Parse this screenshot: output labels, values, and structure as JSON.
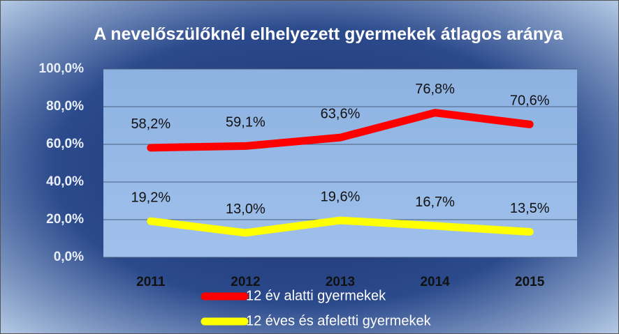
{
  "chart_data": {
    "type": "line",
    "title": "A nevelőszülőknél elhelyezett gyermekek átlagos aránya",
    "categories": [
      "2011",
      "2012",
      "2013",
      "2014",
      "2015"
    ],
    "series": [
      {
        "name": "12 év alatti gyermekek",
        "color": "#ff0000",
        "values": [
          58.2,
          59.1,
          63.6,
          76.8,
          70.6
        ],
        "value_labels": [
          "58,2%",
          "59,1%",
          "63,6%",
          "76,8%",
          "70,6%"
        ]
      },
      {
        "name": "12 éves és afeletti gyermekek",
        "color": "#ffff00",
        "values": [
          19.2,
          13.0,
          19.6,
          16.7,
          13.5
        ],
        "value_labels": [
          "19,2%",
          "13,0%",
          "19,6%",
          "16,7%",
          "13,5%"
        ]
      }
    ],
    "ylim": [
      0,
      100
    ],
    "yticks": [
      {
        "value": 0,
        "label": "0,0%"
      },
      {
        "value": 20,
        "label": "20,0%"
      },
      {
        "value": 40,
        "label": "40,0%"
      },
      {
        "value": 60,
        "label": "60,0%"
      },
      {
        "value": 80,
        "label": "80,0%"
      },
      {
        "value": 100,
        "label": "100,0%"
      }
    ],
    "grid": true,
    "legend": "bottom"
  }
}
